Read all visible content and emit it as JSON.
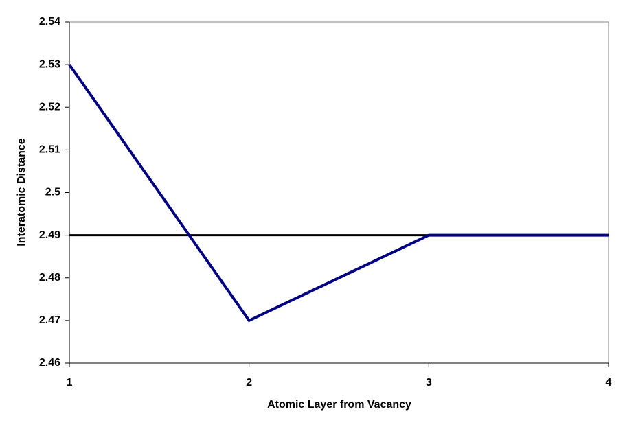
{
  "chart_data": {
    "type": "line",
    "x_label": "Atomic Layer from Vacancy",
    "y_label": "Interatomic Distance",
    "x": [
      1,
      2,
      3,
      4
    ],
    "series": [
      {
        "color": "#000080",
        "values": [
          2.53,
          2.47,
          2.49,
          2.49
        ]
      }
    ],
    "reference_line": {
      "value": 2.49,
      "color": "#000000"
    },
    "xlim": [
      1,
      4
    ],
    "xticks": [
      1,
      2,
      3,
      4
    ],
    "ylim": [
      2.46,
      2.54
    ],
    "yticks": [
      2.46,
      2.47,
      2.48,
      2.49,
      2.5,
      2.51,
      2.52,
      2.53,
      2.54
    ],
    "grid": false
  }
}
